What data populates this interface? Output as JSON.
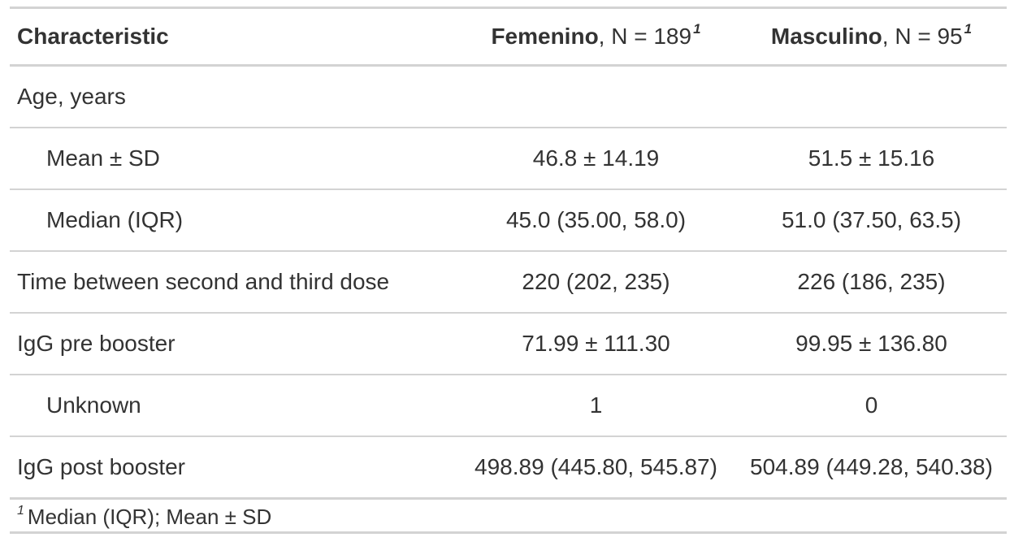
{
  "header": {
    "characteristic": "Characteristic",
    "col1_group": "Femenino",
    "col1_n": ", N = 189",
    "col2_group": "Masculino",
    "col2_n": ", N = 95",
    "footnote_marker": "1"
  },
  "rows": [
    {
      "label": "Age, years",
      "v1": "",
      "v2": ""
    },
    {
      "label": "Mean ± SD",
      "v1": "46.8 ± 14.19",
      "v2": "51.5 ± 15.16"
    },
    {
      "label": "Median (IQR)",
      "v1": "45.0 (35.00, 58.0)",
      "v2": "51.0 (37.50, 63.5)"
    },
    {
      "label": "Time between second and third dose",
      "v1": "220 (202, 235)",
      "v2": "226 (186, 235)"
    },
    {
      "label": "IgG pre booster",
      "v1": "71.99 ± 111.30",
      "v2": "99.95 ± 136.80"
    },
    {
      "label": "Unknown",
      "v1": "1",
      "v2": "0"
    },
    {
      "label": "IgG post booster",
      "v1": "498.89 (445.80, 545.87)",
      "v2": "504.89 (449.28, 540.38)"
    }
  ],
  "footnote": {
    "marker": "1",
    "text": "Median (IQR); Mean ± SD"
  }
}
